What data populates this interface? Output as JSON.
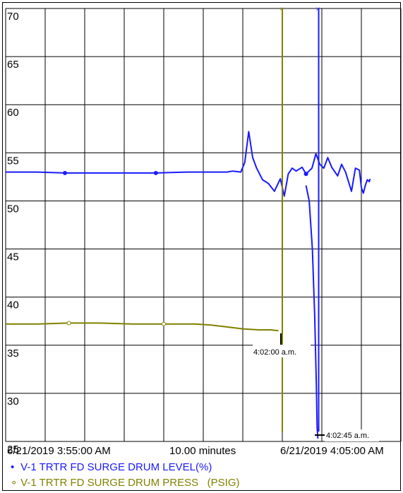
{
  "chart_data": {
    "type": "line",
    "ylim": [
      25,
      70
    ],
    "yticks": [
      70,
      65,
      60,
      55,
      50,
      45,
      40,
      35,
      30,
      25
    ],
    "xlim_minutes": [
      0,
      10
    ],
    "x_label_left": "6/21/2019 3:55:00 AM",
    "x_label_center": "10.00 minutes",
    "x_label_right": "6/21/2019 4:05:00 AM",
    "grid": true,
    "series": [
      {
        "name": "V-1 TRTR FD SURGE DRUM LEVEL(%)",
        "legend_marker": "•",
        "color": "#1a1aff",
        "x_minutes": [
          0,
          0.8,
          1.5,
          2.2,
          3.0,
          3.8,
          4.6,
          5.2,
          5.4,
          5.6,
          5.75,
          5.95,
          6.05,
          6.15,
          6.25,
          6.35,
          6.5,
          6.65,
          6.8,
          6.95,
          7.05,
          7.15,
          7.25,
          7.35,
          7.5,
          7.6,
          7.75,
          7.85,
          7.95,
          8.05,
          8.15,
          8.25,
          8.4,
          8.5,
          8.6,
          8.75,
          8.85,
          8.95,
          9.0,
          9.05,
          9.1,
          9.15,
          9.2,
          9.22
        ],
        "values": [
          53.0,
          53.0,
          52.9,
          52.9,
          52.9,
          52.9,
          53.0,
          53.0,
          53.0,
          53.0,
          53.1,
          53.0,
          54.0,
          57.2,
          54.5,
          53.4,
          52.2,
          51.8,
          51.0,
          52.3,
          50.5,
          52.8,
          53.4,
          53.1,
          53.5,
          52.8,
          53.4,
          54.9,
          53.8,
          53.4,
          54.5,
          53.5,
          52.6,
          53.8,
          53.0,
          51.0,
          53.4,
          53.2,
          51.4,
          50.8,
          51.6,
          52.2,
          52.0,
          52.3
        ],
        "markers_at_minutes": [
          1.5,
          3.8,
          7.6
        ],
        "drop": {
          "x_minutes": [
            7.6,
            7.68,
            7.76,
            7.82,
            7.86,
            7.88,
            7.9
          ],
          "values": [
            51.6,
            50.0,
            45.0,
            38.0,
            31.0,
            26.5,
            25.3
          ]
        },
        "spike_x_minutes": 7.92
      },
      {
        "name": "V-1 TRTR FD SURGE DRUM PRESS   (PSIG)",
        "legend_marker": "∘",
        "color": "#808000",
        "x_minutes": [
          0,
          0.8,
          1.6,
          2.4,
          3.2,
          4.0,
          4.8,
          5.2,
          5.6,
          6.0,
          6.4,
          6.7,
          6.9
        ],
        "values": [
          37.2,
          37.2,
          37.3,
          37.3,
          37.2,
          37.2,
          37.2,
          37.1,
          36.9,
          36.7,
          36.6,
          36.6,
          36.5
        ],
        "markers_at_minutes": [
          1.6,
          4.0
        ],
        "spike_x_minutes": 7.0
      }
    ],
    "annotations": [
      {
        "text": "4:02:00 a.m.",
        "x_minutes": 7.0
      },
      {
        "text": "4:02:45 a.m.",
        "x_minutes": 7.75
      }
    ]
  }
}
